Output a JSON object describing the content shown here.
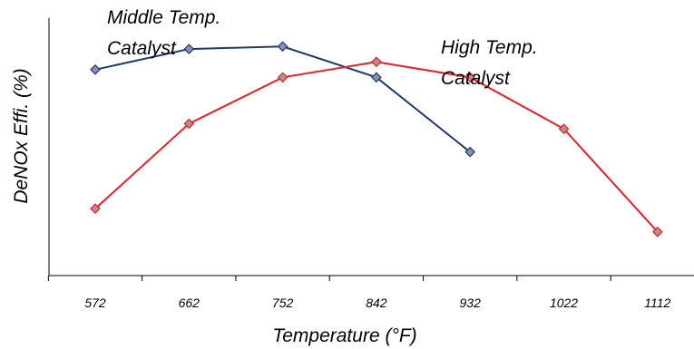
{
  "chart_data": {
    "type": "line",
    "xlabel": "Temperature (°F)",
    "ylabel": "DeNOx Effi. (%)",
    "categories": [
      "572",
      "662",
      "752",
      "842",
      "932",
      "1022",
      "1112"
    ],
    "ylim": [
      0,
      100
    ],
    "grid": false,
    "series": [
      {
        "name": "Middle Temp. Catalyst",
        "label_lines": [
          "Middle Temp.",
          "Catalyst"
        ],
        "color": "#1f3a6e",
        "marker_color": "#8a8fb5",
        "values": [
          80,
          88,
          89,
          77,
          48,
          null,
          null
        ]
      },
      {
        "name": "High Temp. Catalyst",
        "label_lines": [
          "High Temp.",
          "Catalyst"
        ],
        "color": "#ee1c24",
        "marker_color": "#b09090",
        "values": [
          26,
          59,
          77,
          83,
          77,
          57,
          17
        ]
      }
    ]
  }
}
